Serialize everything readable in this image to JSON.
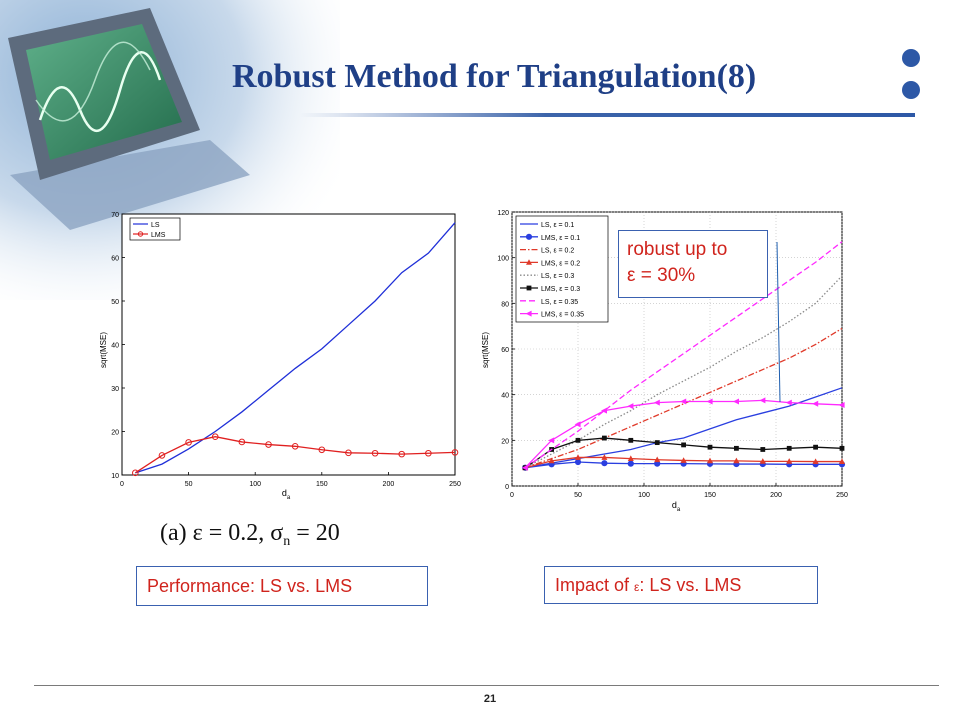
{
  "slide": {
    "title": "Robust Method for Triangulation(8)",
    "page_number": "21",
    "colors": {
      "title": "#1f3f86",
      "accent": "#2d58a6",
      "annotation_text": "#d0241d"
    },
    "decor_icon": "monitor-oscilloscope-icon"
  },
  "captions": {
    "left_box": "Performance: LS vs. LMS",
    "right_box_prefix": "Impact of ",
    "right_box_epsilon": "ε",
    "right_box_suffix": ": LS vs. LMS",
    "note_line1": "robust up to",
    "note_line2": "ε = 30%"
  },
  "chart_data": [
    {
      "type": "line",
      "xlabel": "d",
      "xlabel_sub": "a",
      "ylabel": "sqrt(MSE)",
      "xlim": [
        0,
        250
      ],
      "ylim": [
        10,
        70
      ],
      "xticks": [
        "0",
        "50",
        "100",
        "150",
        "200",
        "250"
      ],
      "yticks": [
        "10",
        "20",
        "30",
        "40",
        "50",
        "60",
        "70"
      ],
      "legend_position": "top-left",
      "grid": false,
      "caption": "(a) ε = 0.2, σ",
      "caption_sub": "n",
      "caption_tail": " = 20",
      "x": [
        10,
        30,
        50,
        70,
        90,
        110,
        130,
        150,
        170,
        190,
        210,
        230,
        250
      ],
      "series": [
        {
          "name": "LS",
          "color": "#1f2fd8",
          "marker": "none",
          "values": [
            10.5,
            12.5,
            16,
            20,
            24.5,
            29.5,
            34.5,
            39,
            44.5,
            50,
            56.5,
            61,
            68
          ]
        },
        {
          "name": "LMS",
          "color": "#e02020",
          "marker": "circle",
          "values": [
            10.5,
            14.5,
            17.5,
            18.8,
            17.6,
            17,
            16.6,
            15.8,
            15.1,
            15,
            14.8,
            15,
            15.2
          ]
        }
      ]
    },
    {
      "type": "line",
      "xlabel": "d",
      "xlabel_sub": "a",
      "ylabel": "sqrt(MSE)",
      "xlim": [
        0,
        250
      ],
      "ylim": [
        0,
        120
      ],
      "xticks": [
        "0",
        "50",
        "100",
        "150",
        "200",
        "250"
      ],
      "yticks": [
        "0",
        "20",
        "40",
        "60",
        "80",
        "100",
        "120"
      ],
      "legend_position": "top-left",
      "grid": true,
      "x": [
        10,
        30,
        50,
        70,
        90,
        110,
        130,
        150,
        170,
        190,
        210,
        230,
        250
      ],
      "series": [
        {
          "name": "LS,   ε = 0.1",
          "color": "#2a3fe0",
          "dash": "solid",
          "marker": "none",
          "values": [
            8,
            10,
            12,
            14,
            16,
            19,
            21,
            25,
            29,
            32,
            35,
            39,
            43
          ]
        },
        {
          "name": "LMS, ε = 0.1",
          "color": "#2a3fe0",
          "dash": "solid",
          "marker": "circle",
          "values": [
            8,
            9.5,
            10.5,
            10,
            9.8,
            9.8,
            9.8,
            9.7,
            9.6,
            9.6,
            9.5,
            9.5,
            9.5
          ]
        },
        {
          "name": "LS,   ε = 0.2",
          "color": "#e03a2a",
          "dash": "dashdot",
          "marker": "none",
          "values": [
            8,
            12,
            16,
            21,
            26,
            31,
            36,
            41,
            46,
            51,
            56,
            62,
            69
          ]
        },
        {
          "name": "LMS, ε = 0.2",
          "color": "#e03a2a",
          "dash": "solid",
          "marker": "triangle",
          "values": [
            8,
            11,
            12.5,
            12.5,
            12,
            11.5,
            11.2,
            11,
            11,
            10.8,
            10.8,
            10.7,
            10.7
          ]
        },
        {
          "name": "LS,   ε = 0.3",
          "color": "#8a8a8a",
          "dash": "dotted",
          "marker": "none",
          "values": [
            8,
            14,
            20,
            27,
            33,
            40,
            46,
            52,
            59,
            65,
            72,
            80,
            92
          ]
        },
        {
          "name": "LMS, ε = 0.3",
          "color": "#111111",
          "dash": "solid",
          "marker": "square",
          "values": [
            8,
            16,
            20,
            21,
            20,
            19,
            18,
            17,
            16.5,
            16,
            16.5,
            17,
            16.5
          ]
        },
        {
          "name": "LS,   ε = 0.35",
          "color": "#ff2aff",
          "dash": "dashed",
          "marker": "none",
          "values": [
            8,
            16,
            24,
            33,
            42,
            50,
            58,
            66,
            74,
            82,
            90,
            98,
            107
          ]
        },
        {
          "name": "LMS, ε = 0.35",
          "color": "#ff2aff",
          "dash": "solid",
          "marker": "triangle-left",
          "values": [
            8,
            20,
            27,
            33,
            35,
            36.5,
            37,
            37,
            37,
            37.5,
            36.5,
            36,
            35.5
          ]
        }
      ]
    }
  ]
}
